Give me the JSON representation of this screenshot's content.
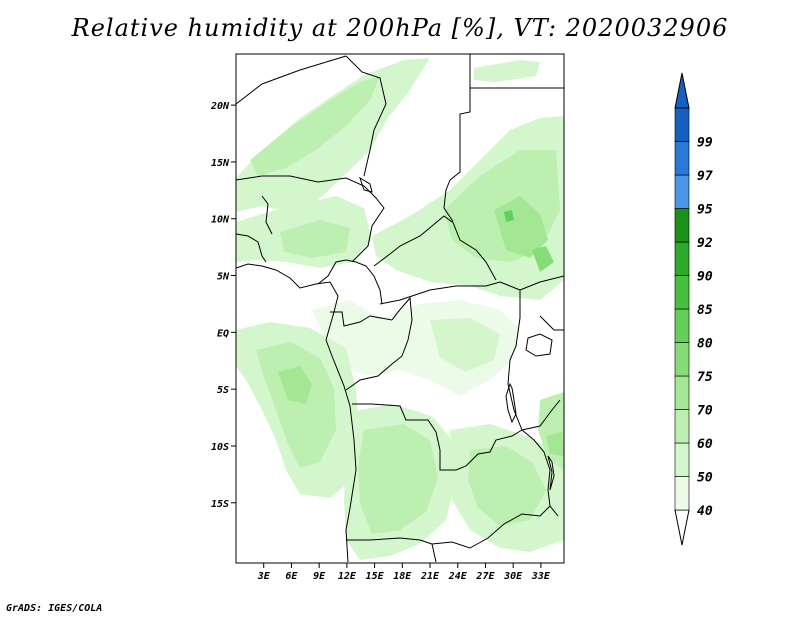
{
  "title": "Relative humidity at 200hPa [%], VT: 2020032906",
  "footer": "GrADS: IGES/COLA",
  "map": {
    "region": "Central Africa",
    "lon_range": [
      0.0,
      35.5
    ],
    "lat_range": [
      -20.3,
      24.5
    ],
    "lat_ticks": [
      {
        "value": 20,
        "label": "20N"
      },
      {
        "value": 15,
        "label": "15N"
      },
      {
        "value": 10,
        "label": "10N"
      },
      {
        "value": 5,
        "label": "5N"
      },
      {
        "value": 0,
        "label": "EQ"
      },
      {
        "value": -5,
        "label": "5S"
      },
      {
        "value": -10,
        "label": "10S"
      },
      {
        "value": -15,
        "label": "15S"
      }
    ],
    "lon_ticks": [
      {
        "value": 3,
        "label": "3E"
      },
      {
        "value": 6,
        "label": "6E"
      },
      {
        "value": 9,
        "label": "9E"
      },
      {
        "value": 12,
        "label": "12E"
      },
      {
        "value": 15,
        "label": "15E"
      },
      {
        "value": 18,
        "label": "18E"
      },
      {
        "value": 21,
        "label": "21E"
      },
      {
        "value": 24,
        "label": "24E"
      },
      {
        "value": 27,
        "label": "27E"
      },
      {
        "value": 30,
        "label": "30E"
      },
      {
        "value": 33,
        "label": "33E"
      }
    ]
  },
  "colorbar": {
    "levels": [
      {
        "label": "40",
        "color": "#ecfbe8"
      },
      {
        "label": "50",
        "color": "#d4f6cc"
      },
      {
        "label": "60",
        "color": "#bcefb0"
      },
      {
        "label": "70",
        "color": "#a3e795"
      },
      {
        "label": "75",
        "color": "#86dd78"
      },
      {
        "label": "80",
        "color": "#64d05a"
      },
      {
        "label": "85",
        "color": "#46c03e"
      },
      {
        "label": "90",
        "color": "#2eaa2a"
      },
      {
        "label": "92",
        "color": "#1a921a"
      },
      {
        "label": "95",
        "color": "#4a97e8"
      },
      {
        "label": "97",
        "color": "#2a78d8"
      },
      {
        "label": "99",
        "color": "#1660c0"
      }
    ],
    "tip_color": "#1660c0"
  }
}
